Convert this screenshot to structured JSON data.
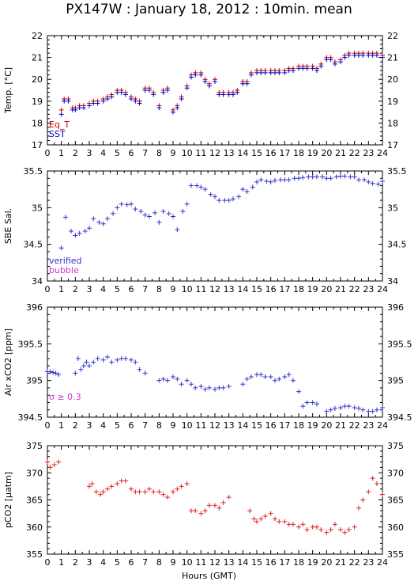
{
  "title": "PX147W : January 18, 2012 : 10min. mean",
  "xlabel": "Hours (GMT)",
  "colors": {
    "eq_t": "#cc0000",
    "sst": "#0000cc",
    "verified": "#3333cc",
    "bubble": "#cc33cc",
    "pco2": "#dd2222",
    "axis": "#000000"
  },
  "chart_data": [
    {
      "type": "scatter",
      "panel": "temp",
      "ylabel": "Temp. [°C]",
      "xlim": [
        0,
        24
      ],
      "ylim": [
        17,
        22
      ],
      "xticks": [
        "0",
        "1",
        "2",
        "3",
        "4",
        "5",
        "6",
        "7",
        "8",
        "9",
        "10",
        "11",
        "12",
        "13",
        "14",
        "15",
        "16",
        "17",
        "18",
        "19",
        "20",
        "21",
        "22",
        "23",
        "24"
      ],
      "yticks": [
        "17",
        "18",
        "19",
        "20",
        "21",
        "22"
      ],
      "legend": [
        "Eq_T",
        "SST"
      ],
      "series": [
        {
          "name": "Eq_T",
          "x": [
            1.0,
            1.2,
            1.5,
            1.8,
            2.0,
            2.3,
            2.6,
            3.0,
            3.3,
            3.6,
            4.0,
            4.3,
            4.6,
            5.0,
            5.3,
            5.6,
            6.0,
            6.3,
            6.6,
            7.0,
            7.3,
            7.6,
            8.0,
            8.3,
            8.6,
            9.0,
            9.3,
            9.6,
            10.0,
            10.3,
            10.6,
            11.0,
            11.3,
            11.6,
            12.0,
            12.3,
            12.6,
            13.0,
            13.3,
            13.6,
            14.0,
            14.3,
            14.6,
            15.0,
            15.3,
            15.6,
            16.0,
            16.3,
            16.6,
            17.0,
            17.3,
            17.6,
            18.0,
            18.3,
            18.6,
            19.0,
            19.3,
            19.6,
            20.0,
            20.3,
            20.6,
            21.0,
            21.3,
            21.6,
            22.0,
            22.3,
            22.6,
            23.0,
            23.3,
            23.6,
            24.0
          ],
          "values": [
            18.6,
            19.1,
            19.1,
            18.7,
            18.7,
            18.8,
            18.8,
            18.9,
            19.0,
            19.0,
            19.1,
            19.2,
            19.3,
            19.5,
            19.5,
            19.4,
            19.2,
            19.1,
            19.0,
            19.6,
            19.6,
            19.4,
            18.8,
            19.5,
            19.6,
            18.6,
            18.8,
            19.2,
            19.7,
            20.2,
            20.3,
            20.3,
            20.0,
            19.8,
            20.0,
            19.4,
            19.4,
            19.4,
            19.4,
            19.5,
            19.9,
            19.9,
            20.3,
            20.4,
            20.4,
            20.4,
            20.4,
            20.4,
            20.4,
            20.4,
            20.5,
            20.5,
            20.6,
            20.6,
            20.6,
            20.6,
            20.5,
            20.7,
            21.0,
            21.0,
            20.8,
            20.9,
            21.1,
            21.2,
            21.2,
            21.2,
            21.2,
            21.2,
            21.2,
            21.2,
            21.1
          ]
        },
        {
          "name": "SST",
          "x": [
            1.0,
            1.2,
            1.5,
            1.8,
            2.0,
            2.3,
            2.6,
            3.0,
            3.3,
            3.6,
            4.0,
            4.3,
            4.6,
            5.0,
            5.3,
            5.6,
            6.0,
            6.3,
            6.6,
            7.0,
            7.3,
            7.6,
            8.0,
            8.3,
            8.6,
            9.0,
            9.3,
            9.6,
            10.0,
            10.3,
            10.6,
            11.0,
            11.3,
            11.6,
            12.0,
            12.3,
            12.6,
            13.0,
            13.3,
            13.6,
            14.0,
            14.3,
            14.6,
            15.0,
            15.3,
            15.6,
            16.0,
            16.3,
            16.6,
            17.0,
            17.3,
            17.6,
            18.0,
            18.3,
            18.6,
            19.0,
            19.3,
            19.6,
            20.0,
            20.3,
            20.6,
            21.0,
            21.3,
            21.6,
            22.0,
            22.3,
            22.6,
            23.0,
            23.3,
            23.6,
            24.0
          ],
          "values": [
            18.4,
            19.0,
            19.0,
            18.6,
            18.6,
            18.7,
            18.7,
            18.8,
            18.9,
            18.9,
            19.0,
            19.1,
            19.2,
            19.4,
            19.4,
            19.3,
            19.1,
            19.0,
            18.9,
            19.5,
            19.5,
            19.3,
            18.7,
            19.4,
            19.5,
            18.5,
            18.7,
            19.1,
            19.6,
            20.1,
            20.2,
            20.2,
            19.9,
            19.7,
            19.9,
            19.3,
            19.3,
            19.3,
            19.3,
            19.4,
            19.8,
            19.8,
            20.2,
            20.3,
            20.3,
            20.3,
            20.3,
            20.3,
            20.3,
            20.3,
            20.4,
            20.4,
            20.5,
            20.5,
            20.5,
            20.5,
            20.4,
            20.6,
            20.9,
            20.9,
            20.7,
            20.8,
            21.0,
            21.1,
            21.1,
            21.1,
            21.1,
            21.1,
            21.1,
            21.1,
            21.0
          ]
        }
      ]
    },
    {
      "type": "scatter",
      "panel": "sal",
      "ylabel": "SBE Sal.",
      "xlim": [
        0,
        24
      ],
      "ylim": [
        34,
        35.5
      ],
      "xticks": [
        "0",
        "1",
        "2",
        "3",
        "4",
        "5",
        "6",
        "7",
        "8",
        "9",
        "10",
        "11",
        "12",
        "13",
        "14",
        "15",
        "16",
        "17",
        "18",
        "19",
        "20",
        "21",
        "22",
        "23",
        "24"
      ],
      "yticks": [
        "34",
        "34.5",
        "35",
        "35.5"
      ],
      "legend": [
        "verified",
        "bubble"
      ],
      "series": [
        {
          "name": "verified",
          "x": [
            1.0,
            1.3,
            1.7,
            2.0,
            2.3,
            2.7,
            3.0,
            3.3,
            3.7,
            4.0,
            4.3,
            4.7,
            5.0,
            5.3,
            5.7,
            6.0,
            6.3,
            6.7,
            7.0,
            7.3,
            7.7,
            8.0,
            8.3,
            8.7,
            9.0,
            9.3,
            9.7,
            10.0,
            10.3,
            10.7,
            11.0,
            11.3,
            11.7,
            12.0,
            12.3,
            12.7,
            13.0,
            13.3,
            13.7,
            14.0,
            14.3,
            14.7,
            15.0,
            15.3,
            15.7,
            16.0,
            16.3,
            16.7,
            17.0,
            17.3,
            17.7,
            18.0,
            18.3,
            18.7,
            19.0,
            19.3,
            19.7,
            20.0,
            20.3,
            20.7,
            21.0,
            21.3,
            21.7,
            22.0,
            22.3,
            22.7,
            23.0,
            23.3,
            23.7,
            24.0
          ],
          "values": [
            34.45,
            34.87,
            34.68,
            34.62,
            34.65,
            34.68,
            34.72,
            34.85,
            34.8,
            34.78,
            34.85,
            34.92,
            35.0,
            35.05,
            35.04,
            35.05,
            34.98,
            34.95,
            34.9,
            34.88,
            34.93,
            34.8,
            34.95,
            34.92,
            34.88,
            34.7,
            34.95,
            35.05,
            35.3,
            35.3,
            35.28,
            35.25,
            35.18,
            35.15,
            35.1,
            35.1,
            35.1,
            35.12,
            35.15,
            35.25,
            35.22,
            35.28,
            35.35,
            35.38,
            35.36,
            35.35,
            35.37,
            35.38,
            35.38,
            35.38,
            35.4,
            35.4,
            35.41,
            35.42,
            35.42,
            35.42,
            35.42,
            35.4,
            35.4,
            35.42,
            35.43,
            35.43,
            35.42,
            35.42,
            35.38,
            35.38,
            35.35,
            35.33,
            35.32,
            35.36
          ]
        }
      ]
    },
    {
      "type": "scatter",
      "panel": "xco2",
      "ylabel": "Air xCO2 [ppm]",
      "xlim": [
        0,
        24
      ],
      "ylim": [
        394.5,
        396
      ],
      "xticks": [
        "0",
        "1",
        "2",
        "3",
        "4",
        "5",
        "6",
        "7",
        "8",
        "9",
        "10",
        "11",
        "12",
        "13",
        "14",
        "15",
        "16",
        "17",
        "18",
        "19",
        "20",
        "21",
        "22",
        "23",
        "24"
      ],
      "yticks": [
        "394.5",
        "395",
        "395.5",
        "396"
      ],
      "annotation": "σ ≥ 0.3",
      "series": [
        {
          "name": "Air xCO2",
          "x": [
            0.0,
            0.2,
            0.4,
            0.6,
            0.8,
            2.0,
            2.2,
            2.4,
            2.6,
            2.8,
            3.0,
            3.3,
            3.6,
            4.0,
            4.3,
            4.6,
            5.0,
            5.3,
            5.6,
            6.0,
            6.3,
            6.6,
            7.0,
            8.0,
            8.3,
            8.6,
            9.0,
            9.3,
            9.6,
            10.0,
            10.3,
            10.6,
            11.0,
            11.3,
            11.6,
            12.0,
            12.3,
            12.6,
            13.0,
            14.0,
            14.3,
            14.6,
            15.0,
            15.3,
            15.6,
            16.0,
            16.3,
            16.6,
            17.0,
            17.3,
            17.6,
            18.0,
            18.3,
            18.6,
            19.0,
            19.3,
            20.0,
            20.3,
            20.6,
            21.0,
            21.3,
            21.6,
            22.0,
            22.3,
            22.6,
            23.0,
            23.3,
            23.6,
            24.0
          ],
          "values": [
            395.12,
            395.12,
            395.11,
            395.1,
            395.08,
            395.1,
            395.3,
            395.15,
            395.2,
            395.25,
            395.2,
            395.25,
            395.3,
            395.28,
            395.32,
            395.25,
            395.28,
            395.3,
            395.3,
            395.28,
            395.25,
            395.15,
            395.1,
            395.0,
            395.02,
            395.0,
            395.05,
            395.02,
            394.95,
            395.0,
            394.95,
            394.9,
            394.92,
            394.88,
            394.9,
            394.88,
            394.9,
            394.9,
            394.92,
            394.95,
            395.02,
            395.05,
            395.08,
            395.08,
            395.05,
            395.05,
            395.0,
            395.02,
            395.05,
            395.08,
            395.0,
            394.85,
            394.65,
            394.7,
            394.7,
            394.68,
            394.58,
            394.6,
            394.62,
            394.63,
            394.65,
            394.65,
            394.63,
            394.62,
            394.6,
            394.58,
            394.58,
            394.6,
            394.63
          ]
        }
      ]
    },
    {
      "type": "scatter",
      "panel": "pco2",
      "ylabel": "pCO2 [µatm]",
      "xlim": [
        0,
        24
      ],
      "ylim": [
        355,
        375
      ],
      "xticks": [
        "0",
        "1",
        "2",
        "3",
        "4",
        "5",
        "6",
        "7",
        "8",
        "9",
        "10",
        "11",
        "12",
        "13",
        "14",
        "15",
        "16",
        "17",
        "18",
        "19",
        "20",
        "21",
        "22",
        "23",
        "24"
      ],
      "yticks": [
        "355",
        "360",
        "365",
        "370",
        "375"
      ],
      "series": [
        {
          "name": "pCO2",
          "x": [
            0.0,
            0.2,
            0.5,
            0.8,
            3.0,
            3.2,
            3.5,
            3.8,
            4.0,
            4.3,
            4.6,
            5.0,
            5.3,
            5.6,
            6.0,
            6.3,
            6.6,
            7.0,
            7.3,
            7.6,
            8.0,
            8.3,
            8.6,
            9.0,
            9.3,
            9.6,
            10.0,
            10.3,
            10.6,
            11.0,
            11.3,
            11.6,
            12.0,
            12.3,
            12.6,
            13.0,
            14.5,
            14.8,
            15.0,
            15.3,
            15.6,
            16.0,
            16.3,
            16.6,
            17.0,
            17.3,
            17.6,
            18.0,
            18.3,
            18.6,
            19.0,
            19.3,
            19.6,
            20.0,
            20.3,
            20.6,
            21.0,
            21.3,
            21.6,
            22.0,
            22.3,
            22.6,
            23.0,
            23.3,
            23.6,
            24.0
          ],
          "values": [
            372.0,
            371.0,
            371.5,
            372.0,
            367.5,
            368.0,
            366.5,
            366.0,
            366.5,
            367.0,
            367.5,
            368.0,
            368.5,
            368.5,
            367.0,
            366.5,
            366.5,
            366.5,
            367.0,
            366.5,
            366.5,
            366.0,
            365.5,
            366.5,
            367.0,
            367.5,
            368.0,
            363.0,
            363.0,
            362.5,
            363.0,
            364.0,
            364.0,
            363.5,
            364.5,
            365.5,
            363.0,
            361.5,
            361.0,
            361.5,
            362.0,
            362.5,
            361.5,
            361.0,
            361.0,
            360.5,
            360.5,
            360.0,
            360.5,
            359.5,
            360.0,
            360.0,
            359.5,
            359.0,
            359.5,
            360.5,
            359.5,
            359.0,
            359.5,
            360.0,
            363.5,
            365.0,
            366.5,
            369.0,
            368.0,
            366.0
          ]
        }
      ]
    }
  ]
}
